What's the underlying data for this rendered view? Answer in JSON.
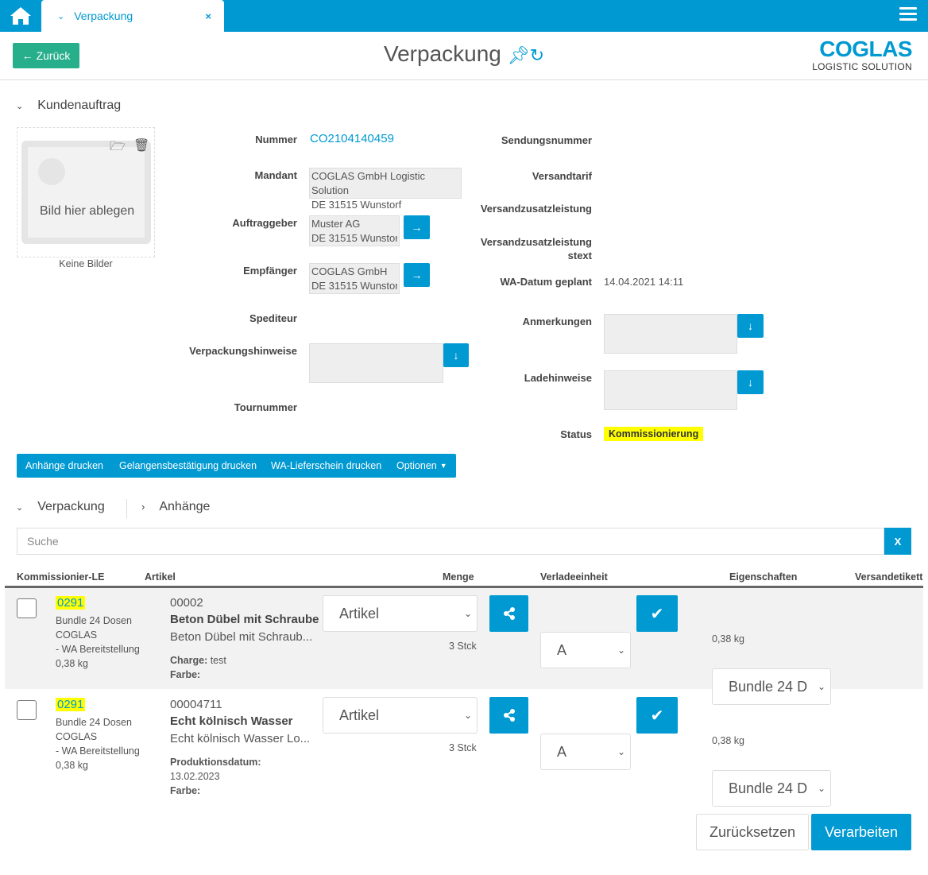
{
  "topbar": {
    "tab_label": "Verpackung",
    "close": "×"
  },
  "header": {
    "back_label": "Zurück",
    "title": "Verpackung",
    "logo_main": "COGLAS",
    "logo_sub": "LOGISTIC SOLUTION"
  },
  "section1": {
    "title": "Kundenauftrag"
  },
  "image": {
    "drop_text": "Bild hier ablegen",
    "caption": "Keine Bilder"
  },
  "fields": {
    "nummer_label": "Nummer",
    "nummer": "CO2104140459",
    "mandant_label": "Mandant",
    "mandant_1": "COGLAS GmbH Logistic Solution",
    "mandant_2": "DE 31515 Wunstorf",
    "auftraggeber_label": "Auftraggeber",
    "auftraggeber_1": "Muster AG",
    "auftraggeber_2": "DE 31515 Wunstorf",
    "empfaenger_label": "Empfänger",
    "empfaenger_1": "COGLAS GmbH",
    "empfaenger_2": "DE 31515 Wunstorf",
    "spediteur_label": "Spediteur",
    "verpackungshinweise_label": "Verpackungshinweise",
    "tournummer_label": "Tournummer",
    "sendungsnummer_label": "Sendungsnummer",
    "versandtarif_label": "Versandtarif",
    "vzl_label": "Versandzusatzleistung",
    "vzlt_label_1": "Versandzusatzleistung",
    "vzlt_label_2": "stext",
    "wa_label": "WA-Datum geplant",
    "wa_value": "14.04.2021 14:11",
    "anmerkungen_label": "Anmerkungen",
    "ladehinweise_label": "Ladehinweise",
    "status_label": "Status",
    "status_value": "Kommissionierung"
  },
  "actions": [
    "Anhänge drucken",
    "Gelangensbestätigung drucken",
    "WA-Lieferschein drucken",
    "Optionen"
  ],
  "tabs": {
    "verpackung": "Verpackung",
    "anhaenge": "Anhänge"
  },
  "search": {
    "placeholder": "Suche",
    "clear": "X"
  },
  "table": {
    "headers": [
      "Kommissionier-LE",
      "Artikel",
      "Menge",
      "Verladeeinheit",
      "Eigenschaften",
      "Versandetikett"
    ],
    "rows": [
      {
        "le": "0291",
        "le_1": "Bundle 24 Dosen",
        "le_2": "COGLAS",
        "le_3": "- WA Bereitstellung",
        "le_4": "0,38 kg",
        "nr": "00002",
        "name": "Beton Dübel mit Schraube",
        "desc": "Beton Dübel mit Schraub...",
        "attr1_label": "Charge:",
        "attr1_value": " test",
        "attr2_label": "Farbe:",
        "attr2_value": "",
        "menge_select": "Artikel",
        "menge": "3 Stck",
        "ve_select": "A",
        "eig_select": "Bundle 24 D",
        "eig_weight": "0,38 kg"
      },
      {
        "le": "0291",
        "le_1": "Bundle 24 Dosen",
        "le_2": "COGLAS",
        "le_3": "- WA Bereitstellung",
        "le_4": "0,38 kg",
        "nr": "00004711",
        "name": "Echt kölnisch Wasser",
        "desc": "Echt kölnisch Wasser Lo...",
        "attr1_label": "Produktionsdatum:",
        "attr1_value": "13.02.2023",
        "attr2_label": "Farbe:",
        "attr2_value": "",
        "menge_select": "Artikel",
        "menge": "3 Stck",
        "ve_select": "A",
        "eig_select": "Bundle 24 D",
        "eig_weight": "0,38 kg"
      }
    ]
  },
  "footer": {
    "reset": "Zurücksetzen",
    "process": "Verarbeiten"
  },
  "colors": {
    "primary": "#0099d2",
    "back": "#27ae8a",
    "highlight": "#ffff00"
  }
}
